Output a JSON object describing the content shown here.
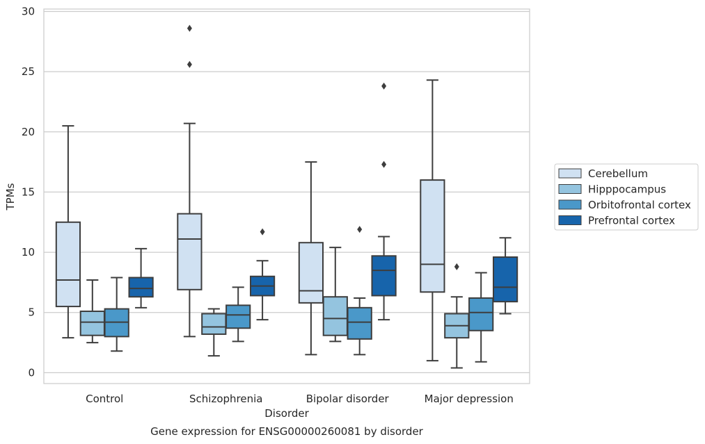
{
  "chart_data": {
    "type": "boxplot",
    "title": "Gene expression for ENSG00000260081 by disorder",
    "xlabel": "Disorder",
    "ylabel": "TPMs",
    "ylim": [
      -0.9,
      30.2
    ],
    "yticks": [
      0,
      5,
      10,
      15,
      20,
      25,
      30
    ],
    "grid": true,
    "legend_position": "right",
    "categories": [
      "Control",
      "Schizophrenia",
      "Bipolar disorder",
      "Major depression"
    ],
    "series": [
      {
        "name": "Cerebellum",
        "color": "#d0e1f2",
        "boxes": [
          {
            "whislo": 2.9,
            "q1": 5.5,
            "med": 7.7,
            "q3": 12.5,
            "whishi": 20.5,
            "fliers": []
          },
          {
            "whislo": 3.0,
            "q1": 6.9,
            "med": 11.1,
            "q3": 13.2,
            "whishi": 20.7,
            "fliers": [
              25.6,
              28.6
            ]
          },
          {
            "whislo": 1.5,
            "q1": 5.8,
            "med": 6.8,
            "q3": 10.8,
            "whishi": 17.5,
            "fliers": []
          },
          {
            "whislo": 1.0,
            "q1": 6.7,
            "med": 9.0,
            "q3": 16.0,
            "whishi": 24.3,
            "fliers": []
          }
        ]
      },
      {
        "name": "Hipppocampus",
        "color": "#94c4df",
        "boxes": [
          {
            "whislo": 2.5,
            "q1": 3.1,
            "med": 4.2,
            "q3": 5.1,
            "whishi": 7.7,
            "fliers": []
          },
          {
            "whislo": 1.4,
            "q1": 3.2,
            "med": 3.8,
            "q3": 4.9,
            "whishi": 5.3,
            "fliers": []
          },
          {
            "whislo": 2.6,
            "q1": 3.1,
            "med": 4.5,
            "q3": 6.3,
            "whishi": 10.4,
            "fliers": []
          },
          {
            "whislo": 0.4,
            "q1": 2.9,
            "med": 3.9,
            "q3": 4.9,
            "whishi": 6.3,
            "fliers": [
              8.8
            ]
          }
        ]
      },
      {
        "name": "Orbitofrontal cortex",
        "color": "#4a98c9",
        "boxes": [
          {
            "whislo": 1.8,
            "q1": 3.0,
            "med": 4.2,
            "q3": 5.3,
            "whishi": 7.9,
            "fliers": []
          },
          {
            "whislo": 2.6,
            "q1": 3.7,
            "med": 4.8,
            "q3": 5.6,
            "whishi": 7.1,
            "fliers": []
          },
          {
            "whislo": 1.5,
            "q1": 2.8,
            "med": 4.2,
            "q3": 5.4,
            "whishi": 6.2,
            "fliers": [
              11.9
            ]
          },
          {
            "whislo": 0.9,
            "q1": 3.5,
            "med": 5.0,
            "q3": 6.2,
            "whishi": 8.3,
            "fliers": []
          }
        ]
      },
      {
        "name": "Prefrontal cortex",
        "color": "#1764ab",
        "boxes": [
          {
            "whislo": 5.4,
            "q1": 6.3,
            "med": 7.0,
            "q3": 7.9,
            "whishi": 10.3,
            "fliers": []
          },
          {
            "whislo": 4.4,
            "q1": 6.4,
            "med": 7.2,
            "q3": 8.0,
            "whishi": 9.3,
            "fliers": [
              11.7
            ]
          },
          {
            "whislo": 4.4,
            "q1": 6.4,
            "med": 8.5,
            "q3": 9.7,
            "whishi": 11.3,
            "fliers": [
              17.3,
              23.8
            ]
          },
          {
            "whislo": 4.9,
            "q1": 5.9,
            "med": 7.1,
            "q3": 9.6,
            "whishi": 11.2,
            "fliers": []
          }
        ]
      }
    ]
  }
}
